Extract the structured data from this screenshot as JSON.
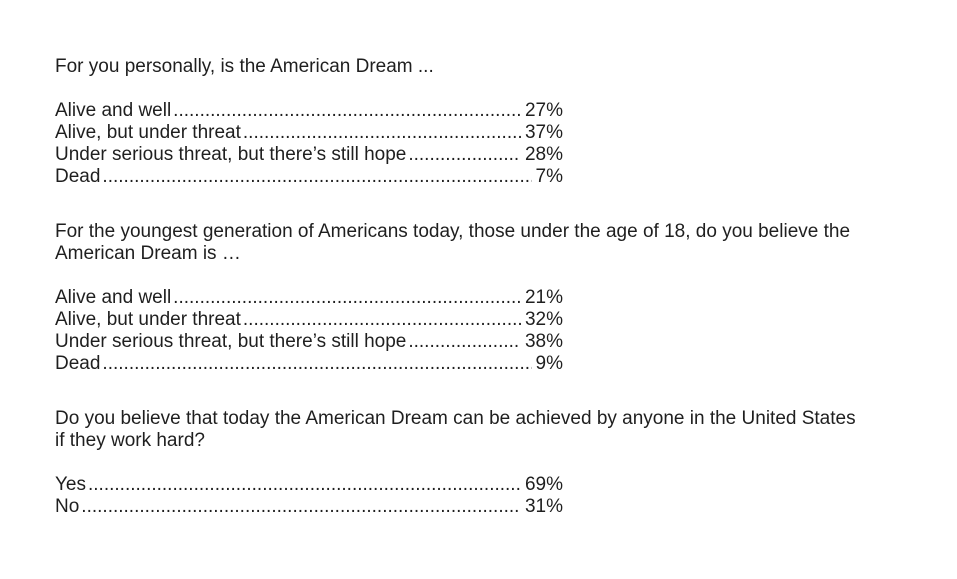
{
  "document": {
    "questions": [
      {
        "text": "For you personally, is the American Dream ...",
        "options": [
          {
            "label": "Alive and well",
            "value": "27%"
          },
          {
            "label": "Alive, but under threat",
            "value": "37%"
          },
          {
            "label": "Under serious threat, but there’s still hope",
            "value": "28%"
          },
          {
            "label": "Dead",
            "value": "7%"
          }
        ]
      },
      {
        "text": "For the youngest generation of Americans today, those under the age of 18, do you believe the\nAmerican Dream is …",
        "options": [
          {
            "label": "Alive and well",
            "value": "21%"
          },
          {
            "label": "Alive, but under threat",
            "value": "32%"
          },
          {
            "label": "Under serious threat, but there’s still hope",
            "value": "38%"
          },
          {
            "label": "Dead",
            "value": "9%"
          }
        ]
      },
      {
        "text": "Do you believe that today the American Dream can be achieved by anyone in the United States\nif they work hard?",
        "options": [
          {
            "label": "Yes",
            "value": "69%"
          },
          {
            "label": "No",
            "value": "31%"
          }
        ]
      }
    ]
  }
}
